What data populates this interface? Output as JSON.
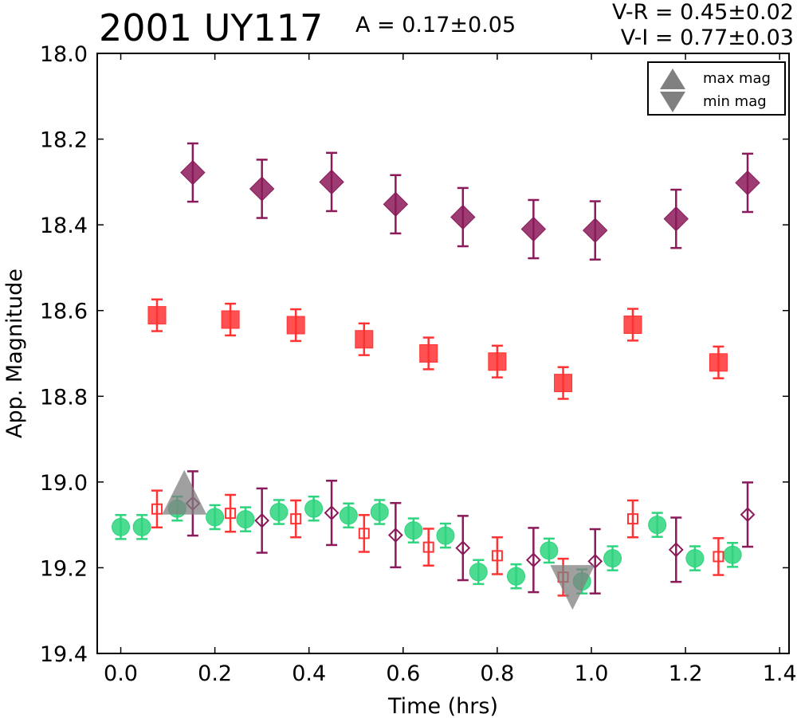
{
  "header": {
    "title": "2001 UY117",
    "amplitude": "A  = 0.17±0.05",
    "vr": "V-R = 0.45±0.02",
    "vi": "V-I  = 0.77±0.03"
  },
  "legend": {
    "max_label": "max mag",
    "min_label": "min mag",
    "marker_color": "#808080"
  },
  "chart_data": {
    "type": "scatter",
    "title": "2001 UY117",
    "xlabel": "Time (hrs)",
    "ylabel": "App. Magnitude",
    "xlim": [
      -0.05,
      1.42
    ],
    "ylim": [
      18.0,
      19.4
    ],
    "y_inverted": true,
    "grid": false,
    "legend_position": "top-right",
    "x_ticks": [
      "0.0",
      "0.2",
      "0.4",
      "0.6",
      "0.8",
      "1.0",
      "1.2",
      "1.4"
    ],
    "y_ticks": [
      "18.0",
      "18.2",
      "18.4",
      "18.6",
      "18.8",
      "19.0",
      "19.2",
      "19.4"
    ],
    "series": [
      {
        "marker": "filled-diamond",
        "color": "#8b1a5a",
        "x": [
          0.153,
          0.3,
          0.448,
          0.584,
          0.727,
          0.877,
          1.008,
          1.18,
          1.332
        ],
        "y": [
          18.278,
          18.316,
          18.3,
          18.352,
          18.382,
          18.41,
          18.413,
          18.386,
          18.302
        ],
        "err": [
          0.068,
          0.068,
          0.068,
          0.068,
          0.068,
          0.068,
          0.068,
          0.068,
          0.068
        ]
      },
      {
        "marker": "filled-square",
        "color": "#ff3333",
        "x": [
          0.077,
          0.233,
          0.372,
          0.517,
          0.654,
          0.8,
          0.94,
          1.088,
          1.27
        ],
        "y": [
          18.611,
          18.621,
          18.634,
          18.667,
          18.7,
          18.719,
          18.769,
          18.633,
          18.721
        ],
        "err": [
          0.037,
          0.037,
          0.037,
          0.037,
          0.037,
          0.037,
          0.037,
          0.037,
          0.037
        ]
      },
      {
        "marker": "filled-circle",
        "color": "#2ed47e",
        "x": [
          0.0,
          0.045,
          0.12,
          0.2,
          0.265,
          0.336,
          0.41,
          0.484,
          0.55,
          0.622,
          0.69,
          0.76,
          0.84,
          0.91,
          0.98,
          1.045,
          1.14,
          1.22,
          1.3
        ],
        "y": [
          19.105,
          19.105,
          19.062,
          19.082,
          19.087,
          19.07,
          19.062,
          19.078,
          19.07,
          19.113,
          19.125,
          19.21,
          19.22,
          19.16,
          19.232,
          19.178,
          19.1,
          19.178,
          19.17
        ],
        "err": [
          0.028,
          0.028,
          0.028,
          0.028,
          0.028,
          0.028,
          0.028,
          0.028,
          0.028,
          0.028,
          0.028,
          0.028,
          0.028,
          0.028,
          0.028,
          0.028,
          0.028,
          0.028,
          0.028
        ]
      },
      {
        "marker": "open-square",
        "color": "#ff3333",
        "x": [
          0.077,
          0.233,
          0.372,
          0.517,
          0.654,
          0.8,
          0.94,
          1.088,
          1.27
        ],
        "y": [
          19.063,
          19.073,
          19.086,
          19.12,
          19.152,
          19.172,
          19.222,
          19.086,
          19.174
        ],
        "err": [
          0.043,
          0.043,
          0.043,
          0.043,
          0.043,
          0.043,
          0.043,
          0.043,
          0.043
        ]
      },
      {
        "marker": "open-diamond",
        "color": "#8b1a5a",
        "x": [
          0.153,
          0.3,
          0.448,
          0.584,
          0.727,
          0.877,
          1.008,
          1.18,
          1.332
        ],
        "y": [
          19.05,
          19.09,
          19.072,
          19.124,
          19.154,
          19.182,
          19.185,
          19.158,
          19.076
        ],
        "err": [
          0.075,
          0.075,
          0.075,
          0.075,
          0.075,
          0.075,
          0.075,
          0.075,
          0.075
        ]
      }
    ],
    "extrema": [
      {
        "kind": "max",
        "x": 0.135,
        "y": 19.05,
        "color": "#808080"
      },
      {
        "kind": "min",
        "x": 0.96,
        "y": 19.22,
        "color": "#808080"
      }
    ]
  }
}
